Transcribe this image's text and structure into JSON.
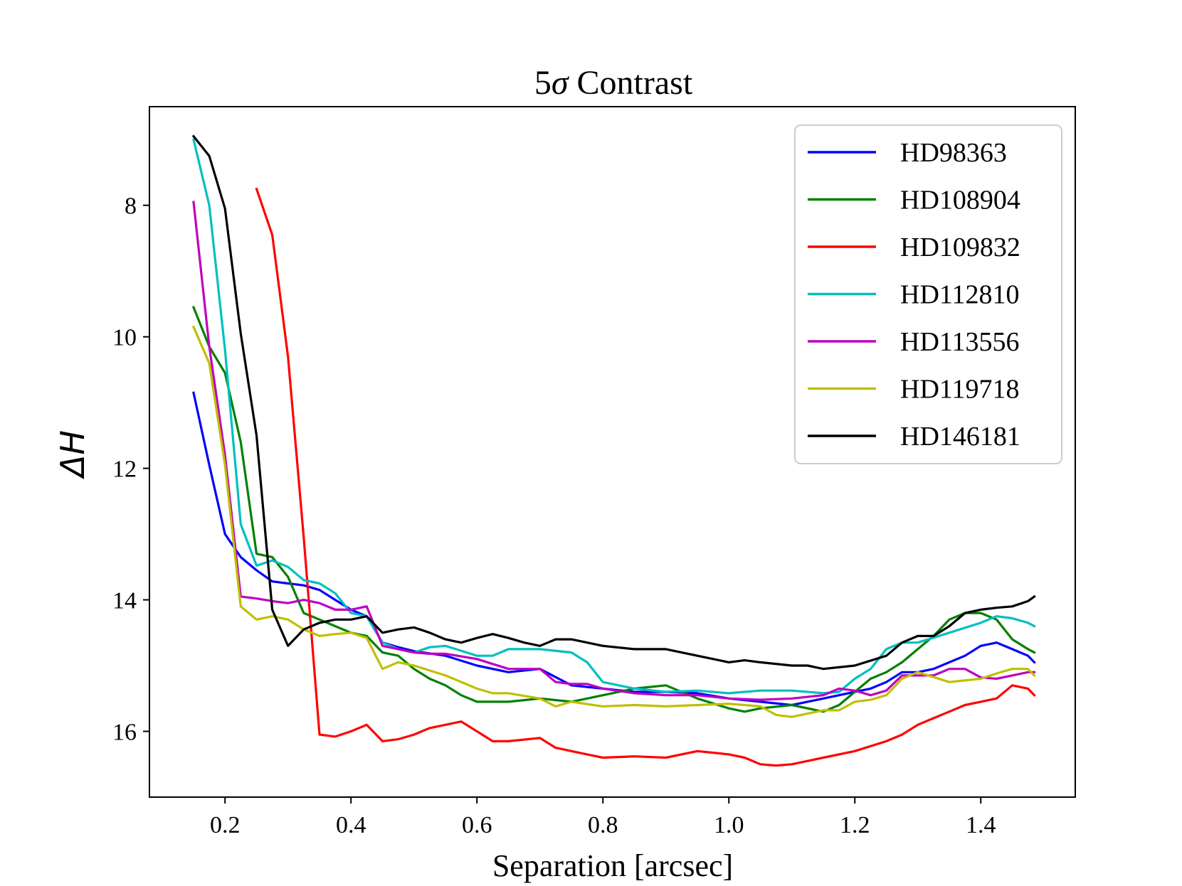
{
  "chart_data": {
    "type": "line",
    "title_prefix": "5",
    "title_symbol": "σ",
    "title_suffix": " Contrast",
    "xlabel": "Separation [arcsec]",
    "ylabel": "ΔH",
    "xlim": [
      0.08,
      1.55
    ],
    "ylim": [
      17.0,
      6.5
    ],
    "y_inverted": true,
    "grid": false,
    "legend_position": "upper right",
    "xticks": [
      0.2,
      0.4,
      0.6,
      0.8,
      1.0,
      1.2,
      1.4
    ],
    "xtick_labels": [
      "0.2",
      "0.4",
      "0.6",
      "0.8",
      "1.0",
      "1.2",
      "1.4"
    ],
    "yticks": [
      8,
      10,
      12,
      14,
      16
    ],
    "ytick_labels": [
      "8",
      "10",
      "12",
      "14",
      "16"
    ],
    "series": [
      {
        "name": "HD98363",
        "color": "#0000ff",
        "x": [
          0.15,
          0.175,
          0.2,
          0.225,
          0.25,
          0.275,
          0.3,
          0.325,
          0.35,
          0.375,
          0.4,
          0.425,
          0.45,
          0.475,
          0.5,
          0.55,
          0.6,
          0.65,
          0.7,
          0.75,
          0.8,
          0.85,
          0.9,
          0.95,
          1.0,
          1.05,
          1.1,
          1.15,
          1.2,
          1.225,
          1.25,
          1.275,
          1.3,
          1.325,
          1.35,
          1.375,
          1.4,
          1.425,
          1.45,
          1.475,
          1.485
        ],
        "y": [
          10.85,
          11.95,
          13.0,
          13.35,
          13.55,
          13.72,
          13.75,
          13.78,
          13.85,
          14.0,
          14.15,
          14.25,
          14.65,
          14.72,
          14.78,
          14.85,
          15.0,
          15.1,
          15.05,
          15.3,
          15.35,
          15.4,
          15.4,
          15.42,
          15.5,
          15.55,
          15.6,
          15.5,
          15.4,
          15.35,
          15.25,
          15.1,
          15.1,
          15.05,
          14.95,
          14.85,
          14.7,
          14.65,
          14.75,
          14.85,
          14.95
        ]
      },
      {
        "name": "HD108904",
        "color": "#008000",
        "x": [
          0.15,
          0.175,
          0.2,
          0.225,
          0.25,
          0.275,
          0.3,
          0.325,
          0.35,
          0.375,
          0.4,
          0.425,
          0.45,
          0.475,
          0.5,
          0.525,
          0.55,
          0.575,
          0.6,
          0.65,
          0.7,
          0.75,
          0.8,
          0.85,
          0.9,
          0.95,
          1.0,
          1.025,
          1.05,
          1.1,
          1.15,
          1.175,
          1.2,
          1.225,
          1.25,
          1.275,
          1.3,
          1.325,
          1.35,
          1.375,
          1.4,
          1.425,
          1.45,
          1.475,
          1.485
        ],
        "y": [
          9.55,
          10.15,
          10.55,
          11.6,
          13.3,
          13.35,
          13.65,
          14.2,
          14.3,
          14.4,
          14.5,
          14.55,
          14.8,
          14.85,
          15.05,
          15.2,
          15.3,
          15.45,
          15.55,
          15.55,
          15.5,
          15.55,
          15.45,
          15.35,
          15.3,
          15.5,
          15.65,
          15.7,
          15.65,
          15.6,
          15.7,
          15.6,
          15.4,
          15.2,
          15.1,
          14.95,
          14.75,
          14.55,
          14.3,
          14.2,
          14.2,
          14.3,
          14.6,
          14.75,
          14.8
        ]
      },
      {
        "name": "HD109832",
        "color": "#ff0000",
        "x": [
          0.25,
          0.275,
          0.3,
          0.325,
          0.35,
          0.375,
          0.4,
          0.425,
          0.45,
          0.475,
          0.5,
          0.525,
          0.55,
          0.575,
          0.6,
          0.625,
          0.65,
          0.7,
          0.725,
          0.75,
          0.775,
          0.8,
          0.85,
          0.9,
          0.95,
          1.0,
          1.025,
          1.05,
          1.075,
          1.1,
          1.15,
          1.2,
          1.25,
          1.275,
          1.3,
          1.325,
          1.35,
          1.375,
          1.4,
          1.425,
          1.45,
          1.475,
          1.485
        ],
        "y": [
          7.75,
          8.45,
          10.3,
          13.05,
          16.05,
          16.08,
          16.0,
          15.9,
          16.15,
          16.12,
          16.05,
          15.95,
          15.9,
          15.85,
          16.0,
          16.15,
          16.15,
          16.1,
          16.25,
          16.3,
          16.35,
          16.4,
          16.38,
          16.4,
          16.3,
          16.35,
          16.4,
          16.5,
          16.52,
          16.5,
          16.4,
          16.3,
          16.15,
          16.05,
          15.9,
          15.8,
          15.7,
          15.6,
          15.55,
          15.5,
          15.3,
          15.35,
          15.45
        ]
      },
      {
        "name": "HD112810",
        "color": "#00bfbf",
        "x": [
          0.15,
          0.175,
          0.2,
          0.225,
          0.25,
          0.275,
          0.3,
          0.325,
          0.35,
          0.375,
          0.4,
          0.425,
          0.45,
          0.475,
          0.5,
          0.525,
          0.55,
          0.6,
          0.625,
          0.65,
          0.7,
          0.75,
          0.775,
          0.8,
          0.85,
          0.9,
          0.95,
          1.0,
          1.05,
          1.1,
          1.15,
          1.175,
          1.2,
          1.225,
          1.25,
          1.275,
          1.3,
          1.35,
          1.4,
          1.425,
          1.45,
          1.475,
          1.485
        ],
        "y": [
          7.0,
          8.0,
          10.2,
          12.85,
          13.48,
          13.4,
          13.5,
          13.7,
          13.75,
          13.9,
          14.2,
          14.25,
          14.65,
          14.75,
          14.8,
          14.72,
          14.7,
          14.85,
          14.85,
          14.75,
          14.75,
          14.8,
          14.95,
          15.25,
          15.35,
          15.4,
          15.38,
          15.42,
          15.38,
          15.38,
          15.42,
          15.4,
          15.2,
          15.05,
          14.75,
          14.65,
          14.65,
          14.5,
          14.35,
          14.25,
          14.28,
          14.35,
          14.4
        ]
      },
      {
        "name": "HD113556",
        "color": "#bf00bf",
        "x": [
          0.15,
          0.175,
          0.2,
          0.225,
          0.25,
          0.275,
          0.3,
          0.325,
          0.35,
          0.375,
          0.4,
          0.425,
          0.45,
          0.475,
          0.5,
          0.525,
          0.55,
          0.6,
          0.65,
          0.7,
          0.725,
          0.75,
          0.775,
          0.8,
          0.85,
          0.9,
          0.95,
          1.0,
          1.05,
          1.1,
          1.15,
          1.175,
          1.2,
          1.225,
          1.25,
          1.275,
          1.3,
          1.325,
          1.35,
          1.375,
          1.4,
          1.425,
          1.45,
          1.475,
          1.485
        ],
        "y": [
          7.95,
          10.15,
          11.8,
          13.95,
          13.98,
          14.02,
          14.05,
          14.0,
          14.05,
          14.15,
          14.15,
          14.1,
          14.7,
          14.75,
          14.8,
          14.82,
          14.82,
          14.9,
          15.05,
          15.05,
          15.25,
          15.28,
          15.28,
          15.35,
          15.42,
          15.45,
          15.45,
          15.5,
          15.52,
          15.5,
          15.45,
          15.35,
          15.38,
          15.45,
          15.38,
          15.15,
          15.15,
          15.15,
          15.05,
          15.05,
          15.18,
          15.2,
          15.15,
          15.1,
          15.1
        ]
      },
      {
        "name": "HD119718",
        "color": "#bfbf00",
        "x": [
          0.15,
          0.175,
          0.2,
          0.225,
          0.25,
          0.275,
          0.3,
          0.325,
          0.35,
          0.375,
          0.4,
          0.425,
          0.45,
          0.475,
          0.5,
          0.55,
          0.6,
          0.625,
          0.65,
          0.7,
          0.725,
          0.75,
          0.8,
          0.85,
          0.9,
          0.95,
          1.0,
          1.05,
          1.075,
          1.1,
          1.15,
          1.175,
          1.2,
          1.225,
          1.25,
          1.275,
          1.3,
          1.35,
          1.4,
          1.425,
          1.45,
          1.475,
          1.485
        ],
        "y": [
          9.85,
          10.4,
          11.95,
          14.1,
          14.3,
          14.25,
          14.3,
          14.45,
          14.55,
          14.52,
          14.5,
          14.58,
          15.05,
          14.95,
          15.0,
          15.15,
          15.35,
          15.42,
          15.42,
          15.5,
          15.62,
          15.55,
          15.62,
          15.6,
          15.62,
          15.6,
          15.58,
          15.62,
          15.75,
          15.78,
          15.68,
          15.68,
          15.55,
          15.52,
          15.45,
          15.2,
          15.1,
          15.25,
          15.2,
          15.12,
          15.05,
          15.05,
          15.15
        ]
      },
      {
        "name": "HD146181",
        "color": "#000000",
        "x": [
          0.15,
          0.175,
          0.2,
          0.225,
          0.25,
          0.275,
          0.3,
          0.325,
          0.35,
          0.375,
          0.4,
          0.425,
          0.45,
          0.475,
          0.5,
          0.525,
          0.55,
          0.575,
          0.6,
          0.625,
          0.65,
          0.675,
          0.7,
          0.725,
          0.75,
          0.8,
          0.85,
          0.9,
          0.95,
          1.0,
          1.025,
          1.05,
          1.1,
          1.125,
          1.15,
          1.2,
          1.25,
          1.275,
          1.3,
          1.325,
          1.35,
          1.375,
          1.4,
          1.425,
          1.45,
          1.475,
          1.485
        ],
        "y": [
          6.95,
          7.25,
          8.05,
          9.95,
          11.5,
          14.15,
          14.7,
          14.45,
          14.35,
          14.3,
          14.3,
          14.25,
          14.5,
          14.45,
          14.42,
          14.5,
          14.6,
          14.65,
          14.58,
          14.52,
          14.58,
          14.65,
          14.7,
          14.6,
          14.6,
          14.7,
          14.75,
          14.75,
          14.85,
          14.95,
          14.92,
          14.95,
          15.0,
          15.0,
          15.05,
          15.0,
          14.85,
          14.65,
          14.55,
          14.55,
          14.4,
          14.2,
          14.15,
          14.12,
          14.1,
          14.02,
          13.95
        ]
      }
    ]
  }
}
